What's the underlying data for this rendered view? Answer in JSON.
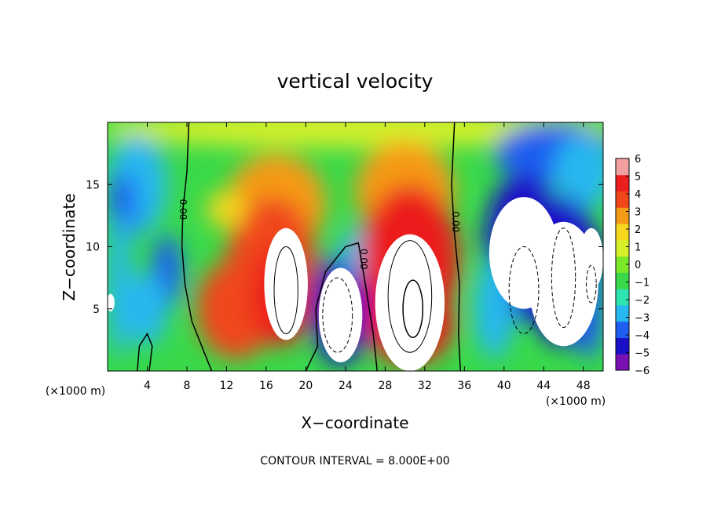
{
  "chart_data": {
    "type": "heatmap",
    "title": "vertical velocity",
    "xlabel": "X−coordinate",
    "ylabel": "Z−coordinate",
    "x_unit_left": "(×1000 m)",
    "x_unit_right": "(×1000 m)",
    "xlim": [
      0,
      50
    ],
    "ylim": [
      0,
      20
    ],
    "x_ticks": [
      4,
      8,
      12,
      16,
      20,
      24,
      28,
      32,
      36,
      40,
      44,
      48
    ],
    "y_ticks": [
      5,
      10,
      15
    ],
    "colorbar": {
      "min": -6,
      "max": 6,
      "ticks": [
        6,
        5,
        4,
        3,
        2,
        1,
        0,
        -1,
        -2,
        -3,
        -4,
        -5,
        -6
      ],
      "tick_labels": [
        "6",
        "5",
        "4",
        "3",
        "2",
        "1",
        "0",
        "−1",
        "−2",
        "−3",
        "−4",
        "−5",
        "−6"
      ],
      "colors": [
        "#7a11b5",
        "#1a10c8",
        "#1f5ef0",
        "#27b8f0",
        "#2de3b0",
        "#39d94a",
        "#7be82a",
        "#d6f02a",
        "#f5d81e",
        "#f59a14",
        "#f0461a",
        "#ec1e1e",
        "#f2a0a0"
      ]
    },
    "contour_label": "0.00",
    "contour_interval_text": "CONTOUR INTERVAL = 8.000E+00",
    "features": [
      {
        "type": "updraft",
        "x": 18,
        "z": 7,
        "peak": 6
      },
      {
        "type": "updraft",
        "x": 30.5,
        "z": 5.5,
        "peak": 6
      },
      {
        "type": "updraft",
        "x": 13,
        "z": 9,
        "peak": 4
      },
      {
        "type": "downdraft",
        "x": 23.5,
        "z": 5,
        "peak": -6
      },
      {
        "type": "downdraft",
        "x": 43.5,
        "z": 9,
        "peak": -6
      },
      {
        "type": "downdraft",
        "x": 2,
        "z": 14,
        "peak": -4
      },
      {
        "type": "downdraft",
        "x": 6,
        "z": 7,
        "peak": -4
      }
    ]
  }
}
